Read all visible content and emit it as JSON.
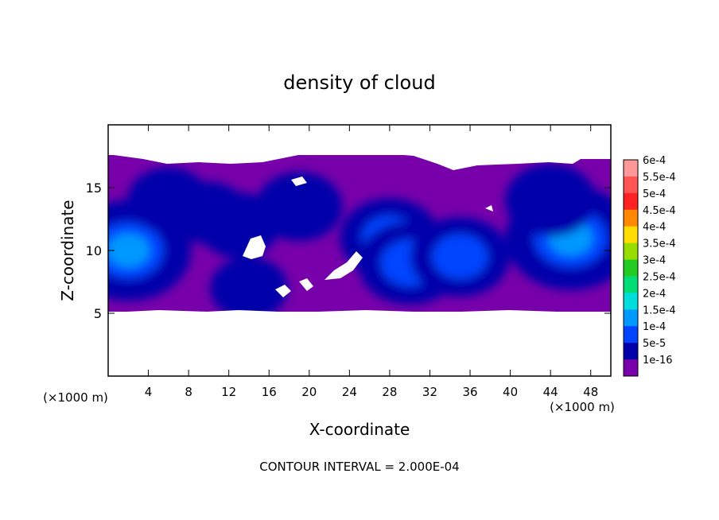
{
  "chart_data": {
    "type": "heatmap",
    "title": "density of cloud",
    "xlabel": "X-coordinate",
    "ylabel": "Z-coordinate",
    "x_unit": "(×1000 m)",
    "y_unit": "(×1000 m)",
    "xlim": [
      0,
      50
    ],
    "ylim": [
      0,
      20
    ],
    "x_ticks": [
      4,
      8,
      12,
      16,
      20,
      24,
      28,
      32,
      36,
      40,
      44,
      48
    ],
    "y_ticks": [
      5,
      10,
      15
    ],
    "footer": "CONTOUR INTERVAL = 2.000E-04",
    "colorbar": {
      "labels": [
        "6e-4",
        "5.5e-4",
        "5e-4",
        "4.5e-4",
        "4e-4",
        "3.5e-4",
        "3e-4",
        "2.5e-4",
        "2e-4",
        "1.5e-4",
        "1e-4",
        "5e-5",
        "1e-16"
      ],
      "values": [
        0.0006,
        0.00055,
        0.0005,
        0.00045,
        0.0004,
        0.00035,
        0.0003,
        0.00025,
        0.0002,
        0.00015,
        0.0001,
        5e-05,
        1e-16
      ],
      "colors": [
        "#ff9999",
        "#ff5555",
        "#ff2222",
        "#ff8800",
        "#ffdd00",
        "#99dd00",
        "#22cc22",
        "#00dd77",
        "#00dddd",
        "#0099ff",
        "#0044ff",
        "#0000aa",
        "#7700aa"
      ]
    },
    "cloud_layer_z_range": [
      5.3,
      17.3
    ],
    "regions": [
      {
        "x": 2,
        "z": 10,
        "value": 0.00016
      },
      {
        "x": 6,
        "z": 14,
        "value": 6e-05
      },
      {
        "x": 10,
        "z": 13,
        "value": 5e-05
      },
      {
        "x": 13,
        "z": 12,
        "value": 6e-05
      },
      {
        "x": 14,
        "z": 7,
        "value": 5e-05
      },
      {
        "x": 19,
        "z": 13.5,
        "value": 7e-05
      },
      {
        "x": 28,
        "z": 11,
        "value": 0.0001
      },
      {
        "x": 30,
        "z": 9,
        "value": 0.00011
      },
      {
        "x": 35,
        "z": 9.5,
        "value": 0.0001
      },
      {
        "x": 46,
        "z": 11,
        "value": 0.00017
      },
      {
        "x": 44,
        "z": 14,
        "value": 8e-05
      }
    ]
  }
}
